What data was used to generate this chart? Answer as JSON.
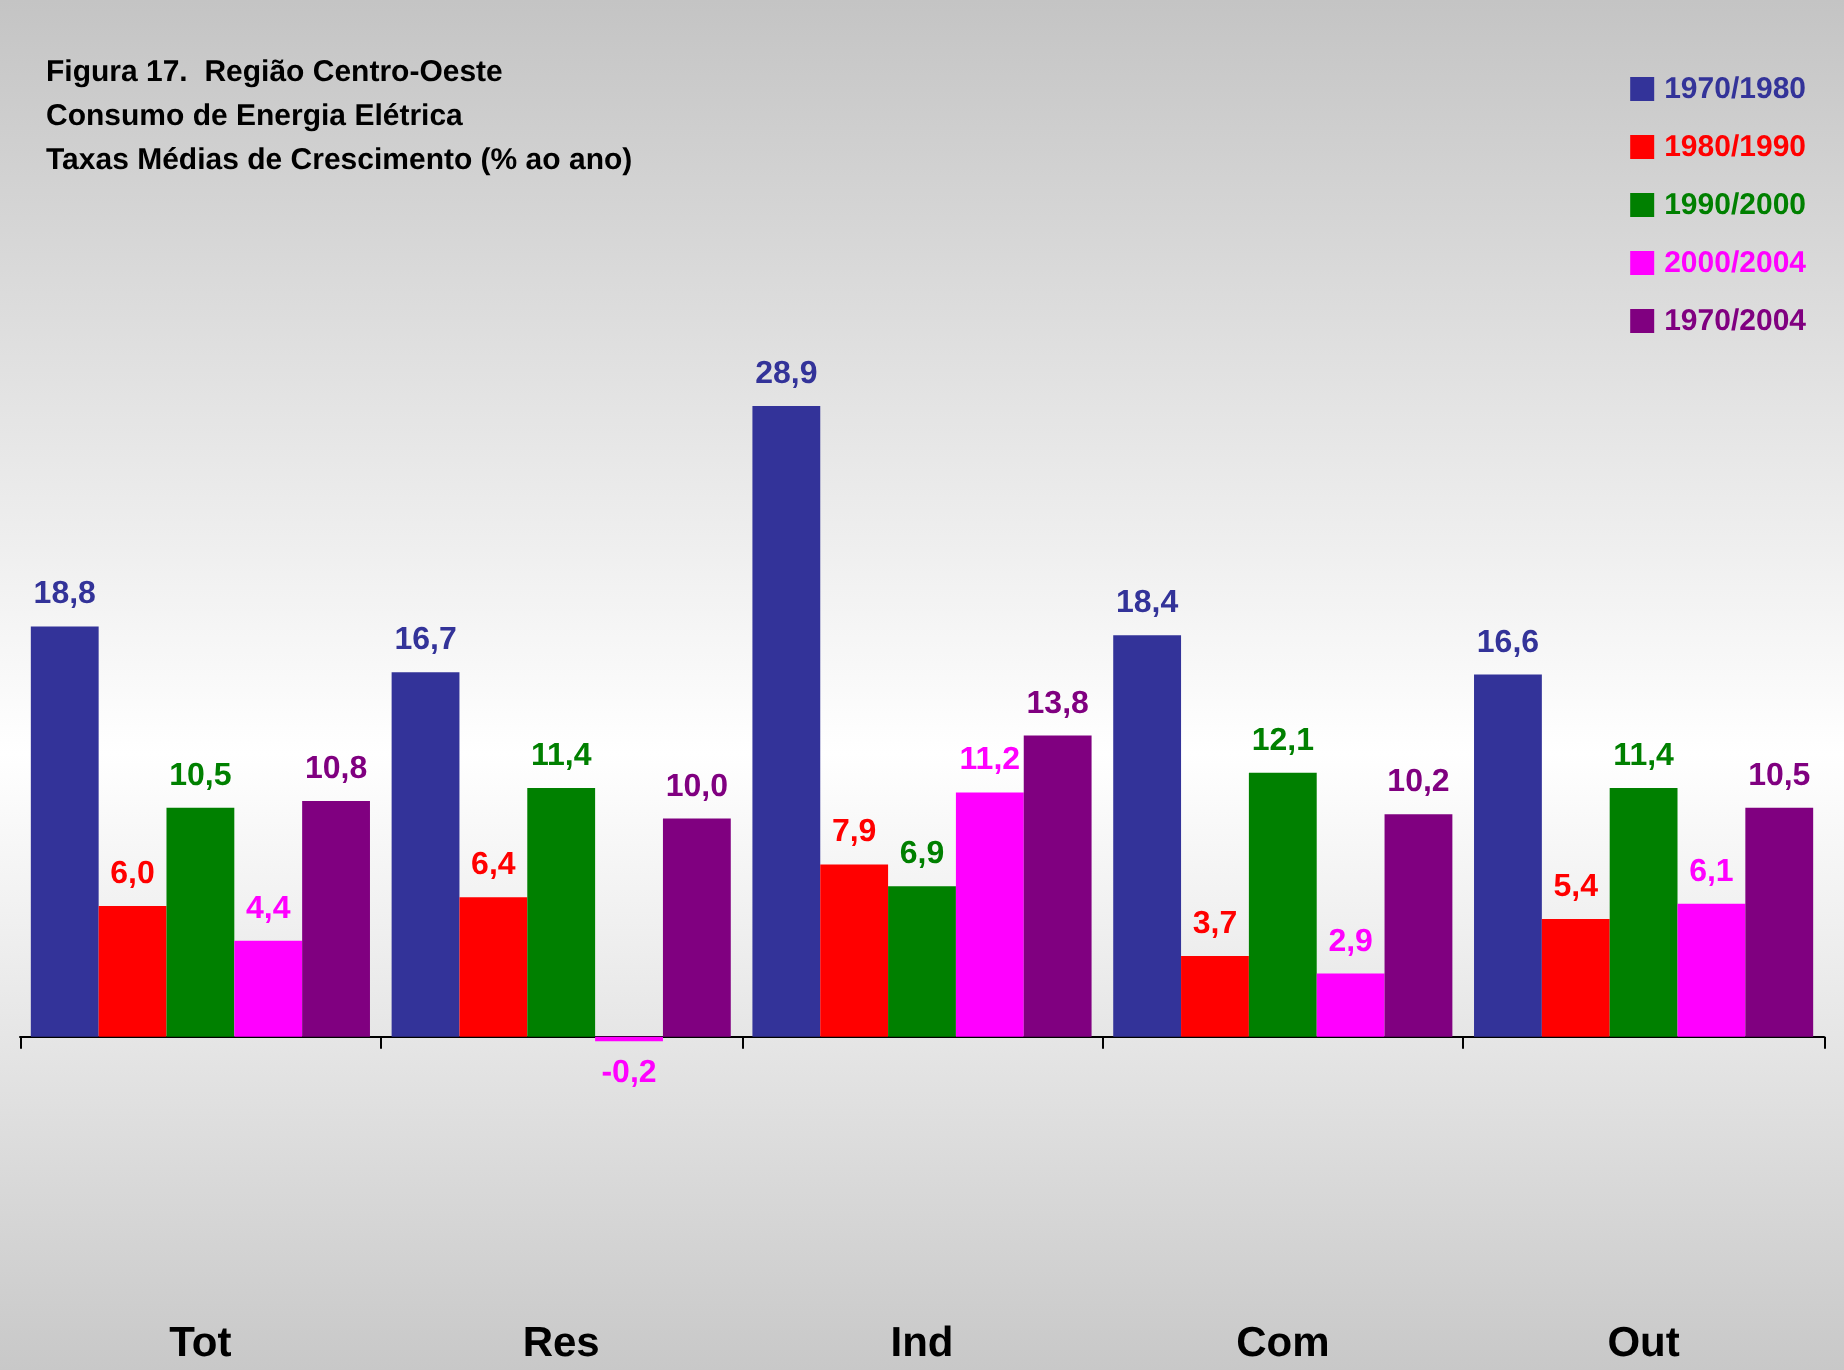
{
  "chart_data": {
    "type": "bar",
    "title": "Figura 17.  Região Centro-Oeste\nConsumo de Energia Elétrica\nTaxas Médias de Crescimento (% ao ano)",
    "categories": [
      "Tot",
      "Res",
      "Ind",
      "Com",
      "Out"
    ],
    "series": [
      {
        "name": "1970/1980",
        "color": "#333399",
        "values": [
          18.8,
          16.7,
          28.9,
          18.4,
          16.6
        ],
        "value_labels": [
          "18,8",
          "16,7",
          "28,9",
          "18,4",
          "16,6"
        ]
      },
      {
        "name": "1980/1990",
        "color": "#ff0000",
        "values": [
          6.0,
          6.4,
          7.9,
          3.7,
          5.4
        ],
        "value_labels": [
          "6,0",
          "6,4",
          "7,9",
          "3,7",
          "5,4"
        ]
      },
      {
        "name": "1990/2000",
        "color": "#008000",
        "values": [
          10.5,
          11.4,
          6.9,
          12.1,
          11.4
        ],
        "value_labels": [
          "10,5",
          "11,4",
          "6,9",
          "12,1",
          "11,4"
        ]
      },
      {
        "name": "2000/2004",
        "color": "#ff00ff",
        "values": [
          4.4,
          -0.2,
          11.2,
          2.9,
          6.1
        ],
        "value_labels": [
          "4,4",
          "-0,2",
          "11,2",
          "2,9",
          "6,1"
        ]
      },
      {
        "name": "1970/2004",
        "color": "#800080",
        "values": [
          10.8,
          10.0,
          13.8,
          10.2,
          10.5
        ],
        "value_labels": [
          "10,8",
          "10,0",
          "13,8",
          "10,2",
          "10,5"
        ]
      }
    ],
    "legend": "top right"
  }
}
